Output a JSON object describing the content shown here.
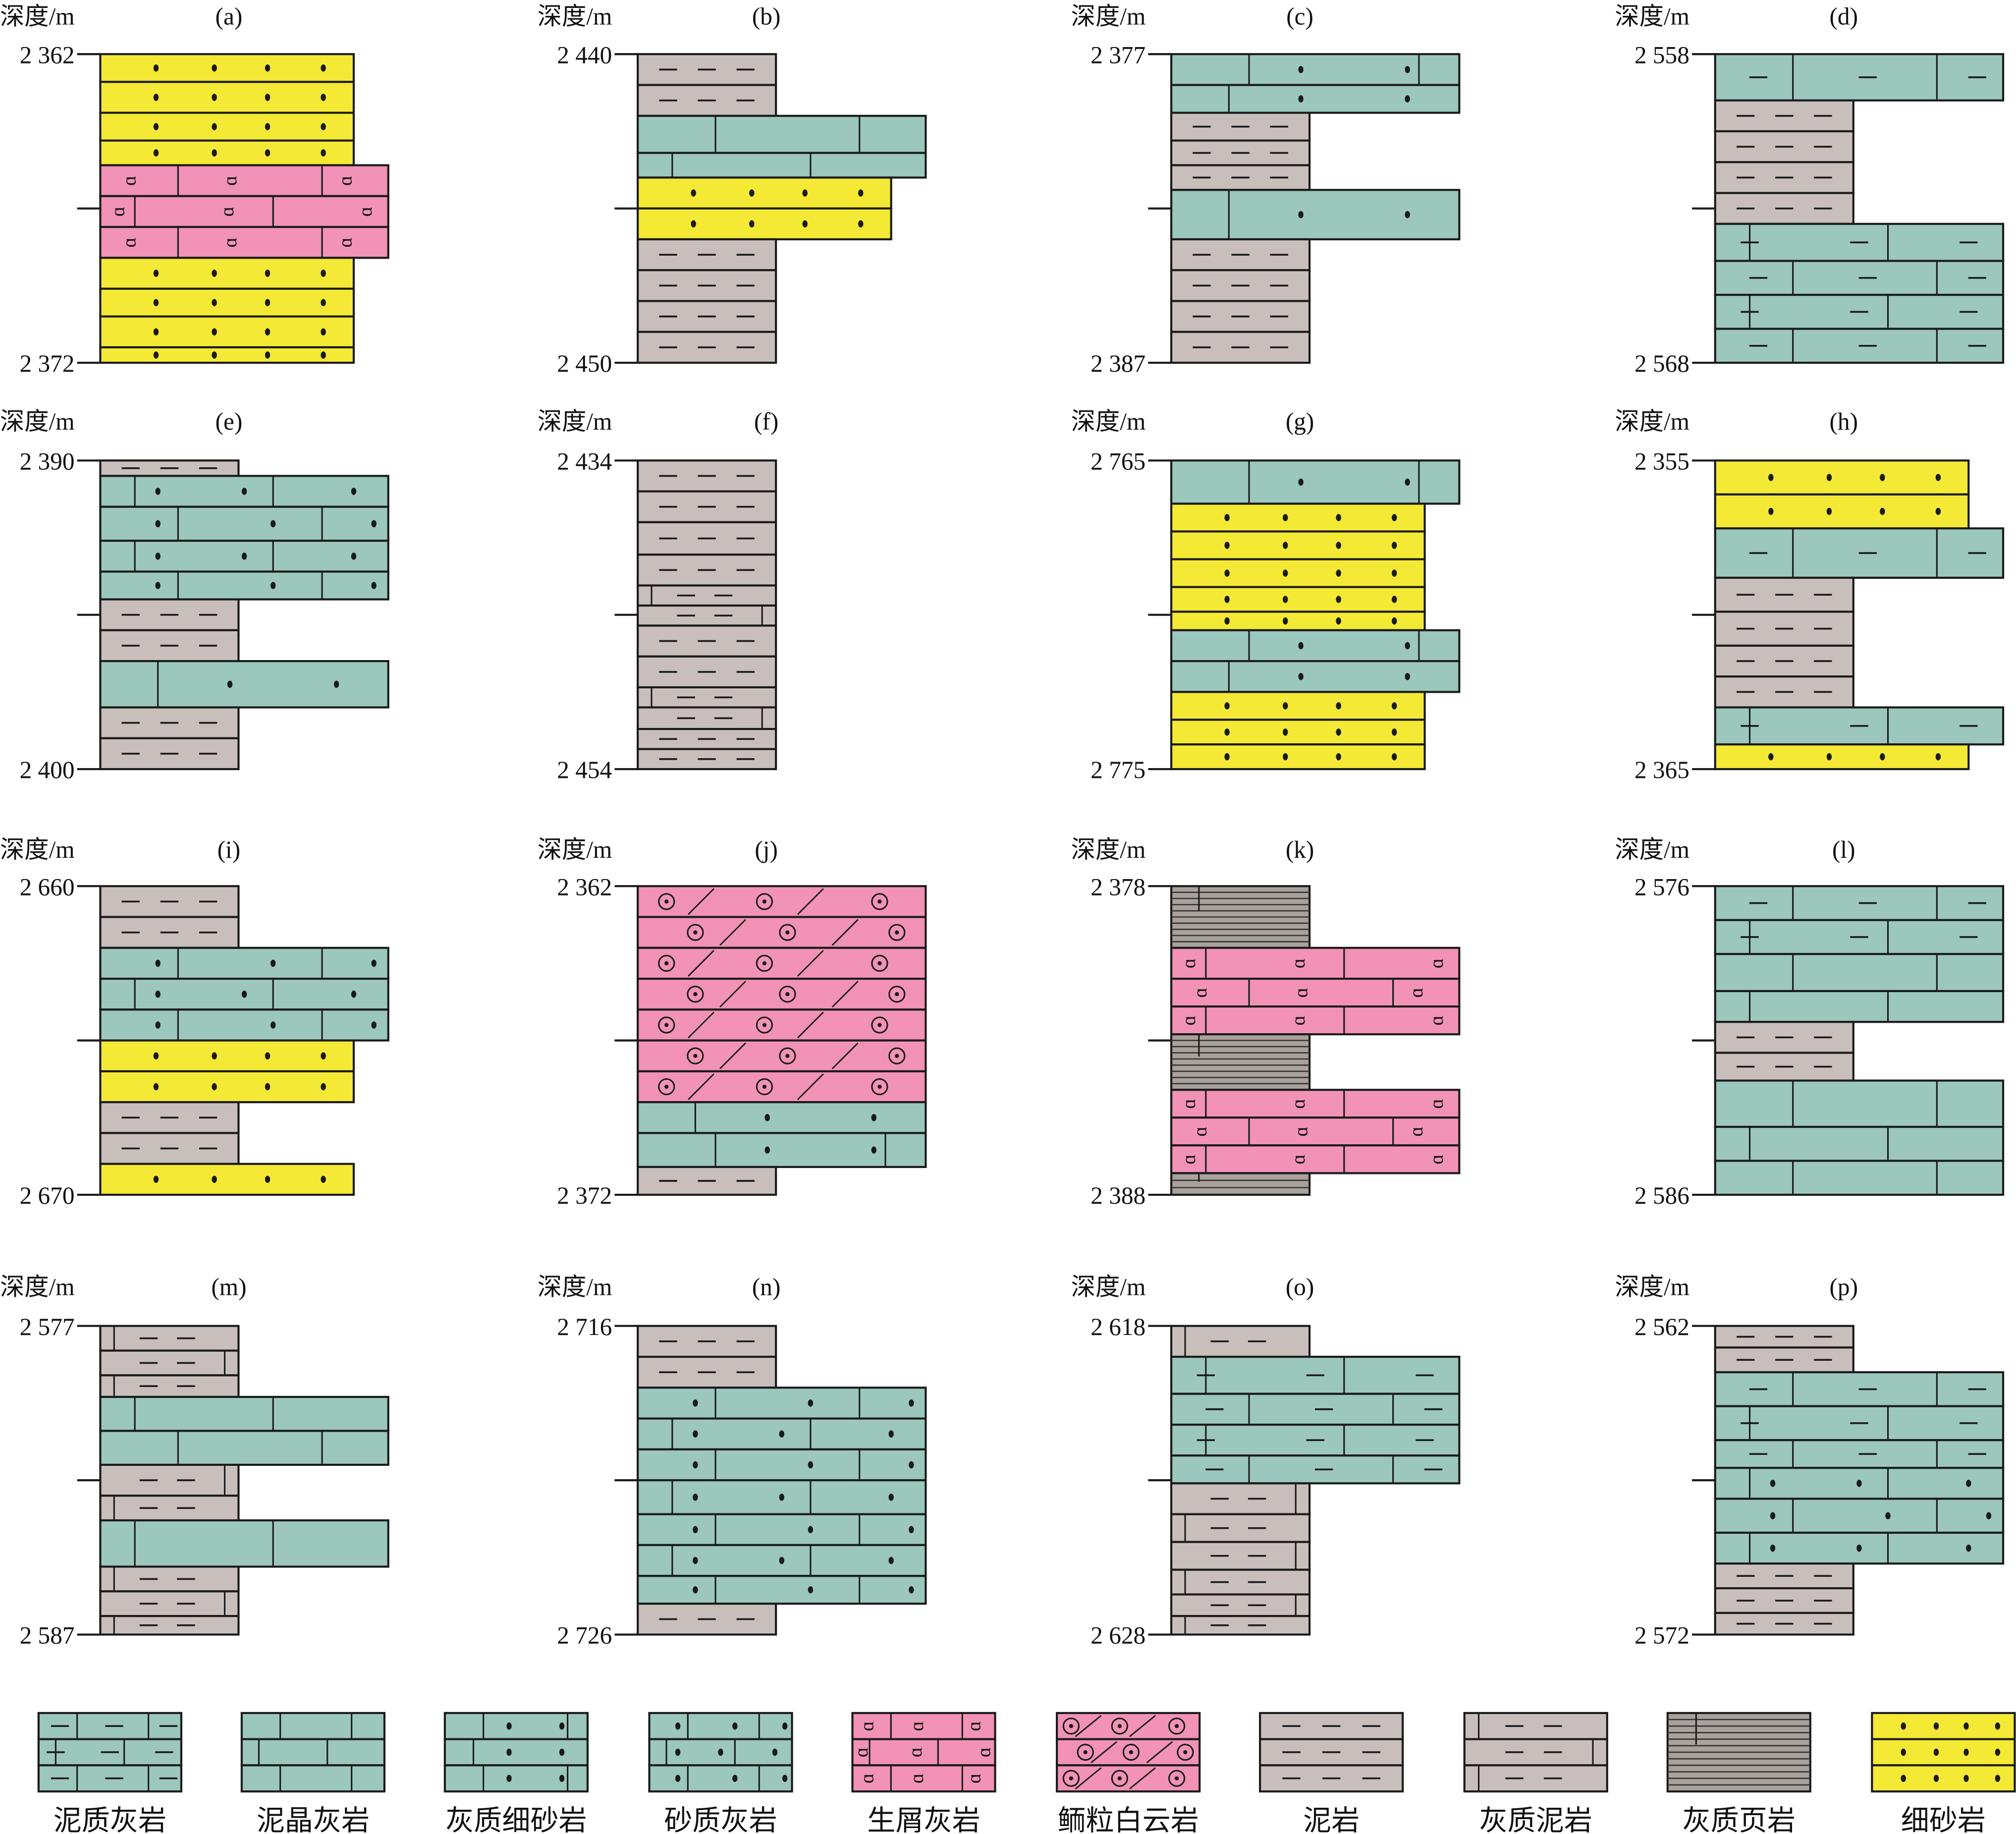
{
  "depth_label": "深度/m",
  "colors": {
    "limestone": "#9bc7bd",
    "bioclastic": "#f192b6",
    "sandstone": "#f4e935",
    "mudstone": "#c8bfbc",
    "shale": "#a9a19c",
    "outline": "#1a1a1a"
  },
  "legend": [
    {
      "code": "MLS",
      "label": "泥质灰岩"
    },
    {
      "code": "MCL",
      "label": "泥晶灰岩"
    },
    {
      "code": "CFS",
      "label": "灰质细砂岩"
    },
    {
      "code": "SLS",
      "label": "砂质灰岩"
    },
    {
      "code": "BIO",
      "label": "生屑灰岩"
    },
    {
      "code": "OOL",
      "label": "鲕粒白云岩"
    },
    {
      "code": "MUD",
      "label": "泥岩"
    },
    {
      "code": "CMUD",
      "label": "灰质泥岩"
    },
    {
      "code": "CSH",
      "label": "灰质页岩"
    },
    {
      "code": "FSS",
      "label": "细砂岩"
    }
  ],
  "panels": [
    {
      "label": "(a)",
      "top": "2 362",
      "bottom": "2 372",
      "layers": [
        [
          "FSS",
          0.9
        ],
        [
          "FSS",
          1.0
        ],
        [
          "FSS",
          0.9
        ],
        [
          "FSS",
          0.8
        ],
        [
          "BIO",
          1.0
        ],
        [
          "BIO",
          1.0
        ],
        [
          "BIO",
          1.0
        ],
        [
          "FSS",
          1.0
        ],
        [
          "FSS",
          0.9
        ],
        [
          "FSS",
          1.0
        ],
        [
          "FSS",
          0.5
        ]
      ]
    },
    {
      "label": "(b)",
      "top": "2 440",
      "bottom": "2 450",
      "layers": [
        [
          "MUD",
          1.0
        ],
        [
          "MUD",
          1.0
        ],
        [
          "MCL",
          1.2
        ],
        [
          "MCL",
          0.8
        ],
        [
          "FSS",
          1.0
        ],
        [
          "FSS",
          1.0
        ],
        [
          "MUD",
          1.0
        ],
        [
          "MUD",
          1.0
        ],
        [
          "MUD",
          1.0
        ],
        [
          "MUD",
          1.0
        ]
      ]
    },
    {
      "label": "(c)",
      "top": "2 377",
      "bottom": "2 387",
      "layers": [
        [
          "CFS",
          1.0
        ],
        [
          "CFS",
          0.9
        ],
        [
          "MUD",
          0.9
        ],
        [
          "MUD",
          0.8
        ],
        [
          "MUD",
          0.8
        ],
        [
          "CFS",
          1.6
        ],
        [
          "MUD",
          1.0
        ],
        [
          "MUD",
          1.0
        ],
        [
          "MUD",
          1.0
        ],
        [
          "MUD",
          1.0
        ]
      ]
    },
    {
      "label": "(d)",
      "top": "2 558",
      "bottom": "2 568",
      "layers": [
        [
          "MLS",
          1.5
        ],
        [
          "MUD",
          1.0
        ],
        [
          "MUD",
          1.0
        ],
        [
          "MUD",
          1.0
        ],
        [
          "MUD",
          1.0
        ],
        [
          "MLS",
          1.2
        ],
        [
          "MLS",
          1.1
        ],
        [
          "MLS",
          1.1
        ],
        [
          "MLS",
          1.1
        ]
      ]
    },
    {
      "label": "(e)",
      "top": "2 390",
      "bottom": "2 400",
      "layers": [
        [
          "MUD",
          0.5
        ],
        [
          "SLS",
          1.0
        ],
        [
          "SLS",
          1.1
        ],
        [
          "SLS",
          1.0
        ],
        [
          "SLS",
          0.9
        ],
        [
          "MUD",
          1.0
        ],
        [
          "MUD",
          1.0
        ],
        [
          "CFS",
          1.5
        ],
        [
          "MUD",
          1.0
        ],
        [
          "MUD",
          1.0
        ]
      ]
    },
    {
      "label": "(f)",
      "top": "2 434",
      "bottom": "2 454",
      "layers": [
        [
          "MUD",
          2.0
        ],
        [
          "MUD",
          2.0
        ],
        [
          "MUD",
          2.1
        ],
        [
          "MUD",
          2.0
        ],
        [
          "CMUD",
          1.3
        ],
        [
          "CMUD",
          1.3
        ],
        [
          "MUD",
          2.0
        ],
        [
          "MUD",
          2.0
        ],
        [
          "CMUD",
          1.3
        ],
        [
          "CMUD",
          1.4
        ],
        [
          "MUD",
          1.3
        ],
        [
          "MUD",
          1.3
        ]
      ]
    },
    {
      "label": "(g)",
      "top": "2 765",
      "bottom": "2 775",
      "layers": [
        [
          "CFS",
          1.4
        ],
        [
          "FSS",
          0.9
        ],
        [
          "FSS",
          0.9
        ],
        [
          "FSS",
          0.9
        ],
        [
          "FSS",
          0.8
        ],
        [
          "FSS",
          0.6
        ],
        [
          "CFS",
          1.0
        ],
        [
          "CFS",
          1.0
        ],
        [
          "FSS",
          0.9
        ],
        [
          "FSS",
          0.8
        ],
        [
          "FSS",
          0.8
        ]
      ]
    },
    {
      "label": "(h)",
      "top": "2 355",
      "bottom": "2 365",
      "layers": [
        [
          "FSS",
          1.1
        ],
        [
          "FSS",
          1.1
        ],
        [
          "MLS",
          1.6
        ],
        [
          "MUD",
          1.1
        ],
        [
          "MUD",
          1.1
        ],
        [
          "MUD",
          1.0
        ],
        [
          "MUD",
          1.0
        ],
        [
          "MLS",
          1.2
        ],
        [
          "FSS",
          0.8
        ]
      ]
    },
    {
      "label": "(i)",
      "top": "2 660",
      "bottom": "2 670",
      "layers": [
        [
          "MUD",
          1.0
        ],
        [
          "MUD",
          1.0
        ],
        [
          "SLS",
          1.0
        ],
        [
          "SLS",
          1.0
        ],
        [
          "SLS",
          1.0
        ],
        [
          "FSS",
          1.0
        ],
        [
          "FSS",
          1.0
        ],
        [
          "MUD",
          1.0
        ],
        [
          "MUD",
          1.0
        ],
        [
          "FSS",
          1.0
        ]
      ]
    },
    {
      "label": "(j)",
      "top": "2 362",
      "bottom": "2 372",
      "layers": [
        [
          "OOL",
          1.0
        ],
        [
          "OOL",
          1.0
        ],
        [
          "OOL",
          1.0
        ],
        [
          "OOL",
          1.0
        ],
        [
          "OOL",
          1.0
        ],
        [
          "OOL",
          1.0
        ],
        [
          "OOL",
          1.0
        ],
        [
          "CFS",
          1.0
        ],
        [
          "CFS",
          1.1
        ],
        [
          "MUD",
          0.9
        ]
      ]
    },
    {
      "label": "(k)",
      "top": "2 378",
      "bottom": "2 388",
      "layers": [
        [
          "CSH",
          2.0
        ],
        [
          "BIO",
          1.0
        ],
        [
          "BIO",
          0.9
        ],
        [
          "BIO",
          0.9
        ],
        [
          "CSH",
          1.8
        ],
        [
          "BIO",
          0.9
        ],
        [
          "BIO",
          0.9
        ],
        [
          "BIO",
          0.9
        ],
        [
          "CSH",
          0.7
        ]
      ]
    },
    {
      "label": "(l)",
      "top": "2 576",
      "bottom": "2 586",
      "layers": [
        [
          "MLS",
          1.1
        ],
        [
          "MLS",
          1.1
        ],
        [
          "MCL",
          1.2
        ],
        [
          "MCL",
          1.0
        ],
        [
          "MUD",
          1.0
        ],
        [
          "MUD",
          0.9
        ],
        [
          "MCL",
          1.5
        ],
        [
          "MCL",
          1.1
        ],
        [
          "MCL",
          1.1
        ]
      ]
    },
    {
      "label": "(m)",
      "top": "2 577",
      "bottom": "2 587",
      "layers": [
        [
          "CMUD",
          0.8
        ],
        [
          "CMUD",
          0.8
        ],
        [
          "CMUD",
          0.7
        ],
        [
          "MCL",
          1.1
        ],
        [
          "MCL",
          1.1
        ],
        [
          "CMUD",
          1.0
        ],
        [
          "CMUD",
          0.8
        ],
        [
          "MCL",
          1.5
        ],
        [
          "CMUD",
          0.8
        ],
        [
          "CMUD",
          0.8
        ],
        [
          "CMUD",
          0.6
        ]
      ]
    },
    {
      "label": "(n)",
      "top": "2 716",
      "bottom": "2 726",
      "layers": [
        [
          "MUD",
          1.0
        ],
        [
          "MUD",
          1.0
        ],
        [
          "SLS",
          1.0
        ],
        [
          "SLS",
          1.0
        ],
        [
          "SLS",
          1.0
        ],
        [
          "SLS",
          1.1
        ],
        [
          "SLS",
          1.0
        ],
        [
          "SLS",
          1.0
        ],
        [
          "SLS",
          0.9
        ],
        [
          "MUD",
          1.0
        ]
      ]
    },
    {
      "label": "(o)",
      "top": "2 618",
      "bottom": "2 628",
      "layers": [
        [
          "CMUD",
          1.0
        ],
        [
          "MLS",
          1.2
        ],
        [
          "MLS",
          1.0
        ],
        [
          "MLS",
          1.0
        ],
        [
          "MLS",
          0.9
        ],
        [
          "CMUD",
          1.0
        ],
        [
          "CMUD",
          0.9
        ],
        [
          "CMUD",
          0.9
        ],
        [
          "CMUD",
          0.8
        ],
        [
          "CMUD",
          0.7
        ],
        [
          "CMUD",
          0.6
        ]
      ]
    },
    {
      "label": "(p)",
      "top": "2 562",
      "bottom": "2 572",
      "layers": [
        [
          "MUD",
          0.7
        ],
        [
          "MUD",
          0.8
        ],
        [
          "MLS",
          1.1
        ],
        [
          "MLS",
          1.1
        ],
        [
          "MLS",
          0.9
        ],
        [
          "SLS",
          1.0
        ],
        [
          "SLS",
          1.1
        ],
        [
          "SLS",
          1.0
        ],
        [
          "MUD",
          0.8
        ],
        [
          "MUD",
          0.8
        ],
        [
          "MUD",
          0.7
        ]
      ]
    }
  ]
}
